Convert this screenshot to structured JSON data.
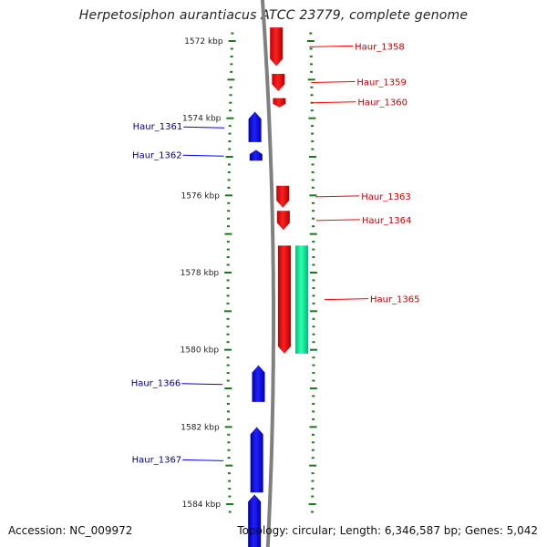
{
  "title": "Herpetosiphon aurantiacus ATCC 23779, complete genome",
  "footer": {
    "accession": "Accession: NC_009972",
    "stats": "Topology: circular; Length: 6,346,587 bp; Genes: 5,042"
  },
  "colors": {
    "forward_gene": "#ff0000",
    "reverse_gene": "#0000ff",
    "rna_gene": "#00e890",
    "backbone": "#808080",
    "tick": "#1a7a1a",
    "label_forward": "#cc0000",
    "label_reverse": "#00008b"
  },
  "scale": {
    "unit": "kbp",
    "labels": [
      "1572 kbp",
      "1574 kbp",
      "1576 kbp",
      "1578 kbp",
      "1580 kbp",
      "1582 kbp",
      "1584 kbp"
    ],
    "label_kbp": [
      1572,
      1574,
      1576,
      1578,
      1580,
      1582,
      1584
    ],
    "range_kbp": [
      1571.2,
      1585.2
    ]
  },
  "genes": [
    {
      "name": "Haur_1358",
      "strand": "+",
      "start_kbp": 1571.65,
      "end_kbp": 1572.65
    },
    {
      "name": "Haur_1359",
      "strand": "+",
      "start_kbp": 1572.85,
      "end_kbp": 1573.3
    },
    {
      "name": "Haur_1360",
      "strand": "+",
      "start_kbp": 1573.48,
      "end_kbp": 1573.72
    },
    {
      "name": "Haur_1361",
      "strand": "-",
      "start_kbp": 1573.83,
      "end_kbp": 1574.62
    },
    {
      "name": "Haur_1362",
      "strand": "-",
      "start_kbp": 1574.82,
      "end_kbp": 1575.1
    },
    {
      "name": "Haur_1363",
      "strand": "+",
      "start_kbp": 1575.75,
      "end_kbp": 1576.32
    },
    {
      "name": "Haur_1364",
      "strand": "+",
      "start_kbp": 1576.4,
      "end_kbp": 1576.9
    },
    {
      "name": "Haur_1365",
      "strand": "+",
      "start_kbp": 1577.3,
      "end_kbp": 1580.1
    },
    {
      "name": "Haur_1366",
      "strand": "-",
      "start_kbp": 1580.4,
      "end_kbp": 1581.35
    },
    {
      "name": "Haur_1367",
      "strand": "-",
      "start_kbp": 1582.0,
      "end_kbp": 1583.7
    }
  ],
  "unlabeled_features": [
    {
      "type": "rna",
      "strand": "+",
      "start_kbp": 1577.3,
      "end_kbp": 1580.1
    },
    {
      "type": "gene",
      "strand": "-",
      "start_kbp": 1583.75,
      "end_kbp": 1585.2
    }
  ]
}
